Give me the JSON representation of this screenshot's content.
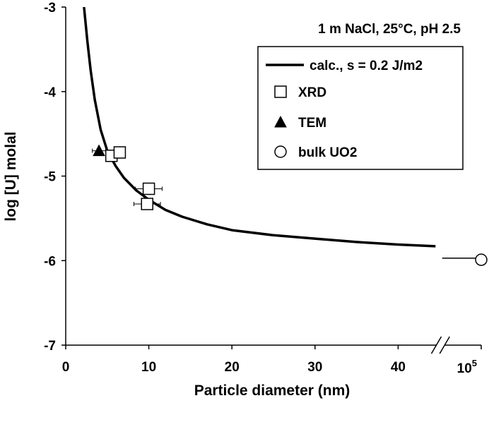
{
  "chart_data": {
    "type": "scatter",
    "annotation": "1 m NaCl, 25°C, pH 2.5",
    "xlabel": "Particle diameter (nm)",
    "ylabel": "log [U] molal",
    "xlim": [
      0,
      50
    ],
    "ylim": [
      -7,
      -3
    ],
    "x_ticks": [
      0,
      10,
      20,
      30,
      40
    ],
    "x_tick_labels": [
      "0",
      "10",
      "20",
      "30",
      "40"
    ],
    "x_break_label_base": "10",
    "x_break_label_exp": "5",
    "y_ticks": [
      -3,
      -4,
      -5,
      -6,
      -7
    ],
    "y_tick_labels": [
      "-3",
      "-4",
      "-5",
      "-6",
      "-7"
    ],
    "axis_break": true,
    "grid": false,
    "legend_position": "top-right",
    "series": [
      {
        "name": "calc., s = 0.2 J/m2",
        "kind": "line",
        "points": [
          [
            2.2,
            -3.0
          ],
          [
            2.6,
            -3.4
          ],
          [
            3.0,
            -3.75
          ],
          [
            3.5,
            -4.1
          ],
          [
            4.2,
            -4.45
          ],
          [
            5.0,
            -4.7
          ],
          [
            6.0,
            -4.88
          ],
          [
            7.0,
            -5.02
          ],
          [
            8.5,
            -5.17
          ],
          [
            10,
            -5.28
          ],
          [
            12,
            -5.4
          ],
          [
            14,
            -5.48
          ],
          [
            17,
            -5.57
          ],
          [
            20,
            -5.64
          ],
          [
            25,
            -5.7
          ],
          [
            30,
            -5.74
          ],
          [
            35,
            -5.78
          ],
          [
            40,
            -5.81
          ],
          [
            44.5,
            -5.83
          ]
        ],
        "tail": [
          [
            45.3,
            -5.97
          ],
          [
            50,
            -5.97
          ]
        ]
      },
      {
        "name": "XRD",
        "kind": "marker",
        "marker": "open-square",
        "points": [
          [
            5.5,
            -4.76
          ],
          [
            6.5,
            -4.72
          ],
          [
            10.0,
            -5.15
          ],
          [
            9.8,
            -5.33
          ]
        ],
        "x_error": [
          0.5,
          0,
          1.6,
          1.6
        ]
      },
      {
        "name": "TEM",
        "kind": "marker",
        "marker": "filled-triangle",
        "points": [
          [
            4.0,
            -4.7
          ]
        ],
        "x_error": [
          0.8
        ]
      },
      {
        "name": "bulk UO2",
        "kind": "marker",
        "marker": "open-circle",
        "points": [
          [
            50,
            -5.99
          ]
        ],
        "x_error": [
          0
        ]
      }
    ]
  }
}
